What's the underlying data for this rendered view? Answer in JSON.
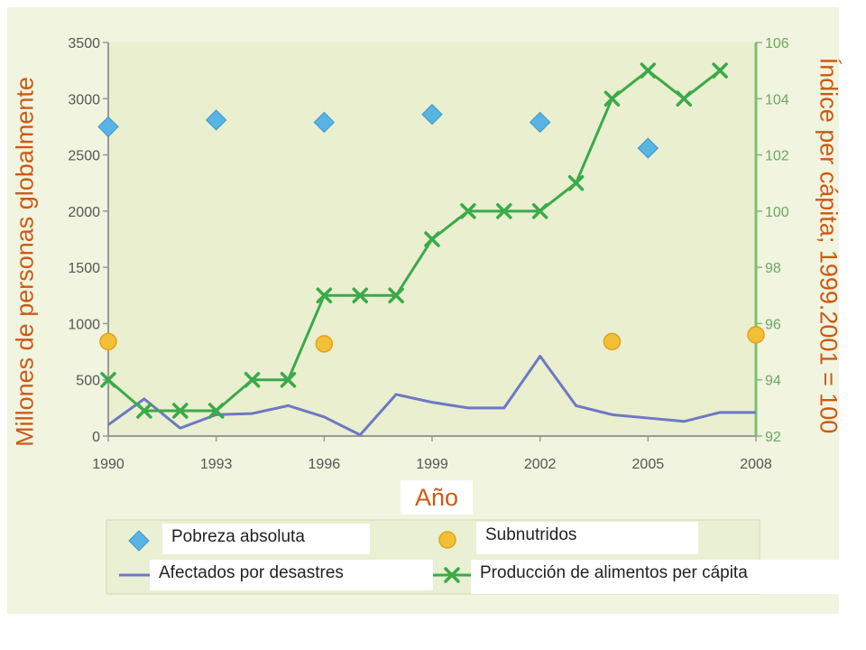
{
  "chart_data": {
    "type": "line",
    "title": "",
    "xlabel": "Año",
    "ylabel_left": "Millones de personas globalmente",
    "ylabel_right": "Índice per cápita; 1999.2001 = 100",
    "x_ticks": [
      "1990",
      "1993",
      "1996",
      "1999",
      "2002",
      "2005",
      "2008"
    ],
    "xlim": [
      1990,
      2008
    ],
    "ylim_left": [
      0,
      3500
    ],
    "y_ticks_left": [
      "0",
      "500",
      "1000",
      "1500",
      "2000",
      "2500",
      "3000",
      "3500"
    ],
    "ylim_right": [
      92,
      106
    ],
    "y_ticks_right": [
      "92",
      "94",
      "96",
      "98",
      "100",
      "102",
      "104",
      "106"
    ],
    "grid": false,
    "legend_position": "bottom",
    "colors": {
      "plot_bg": "#e9efcf",
      "page_bg": "#f1f4df",
      "poverty": "#57b4e4",
      "hunger": "#f2bf36",
      "disaster": "#6e78c4",
      "food": "#3aaa4a",
      "axis": "#999999",
      "right_axis": "#7cc26f",
      "title": "#cc5a14"
    },
    "series": [
      {
        "name": "Pobreza absoluta",
        "axis": "left",
        "kind": "scatter",
        "marker": "diamond",
        "points": [
          [
            1990,
            2750
          ],
          [
            1993,
            2810
          ],
          [
            1996,
            2790
          ],
          [
            1999,
            2860
          ],
          [
            2002,
            2790
          ],
          [
            2005,
            2560
          ]
        ]
      },
      {
        "name": "Subnutridos",
        "axis": "left",
        "kind": "scatter",
        "marker": "circle",
        "points": [
          [
            1990,
            840
          ],
          [
            1996,
            820
          ],
          [
            2004,
            840
          ],
          [
            2008,
            900
          ]
        ]
      },
      {
        "name": "Afectados por desastres",
        "axis": "left",
        "kind": "line",
        "points": [
          [
            1990,
            100
          ],
          [
            1991,
            330
          ],
          [
            1992,
            70
          ],
          [
            1993,
            190
          ],
          [
            1994,
            200
          ],
          [
            1995,
            270
          ],
          [
            1996,
            170
          ],
          [
            1997,
            10
          ],
          [
            1998,
            370
          ],
          [
            1999,
            300
          ],
          [
            2000,
            250
          ],
          [
            2001,
            250
          ],
          [
            2002,
            710
          ],
          [
            2003,
            270
          ],
          [
            2004,
            190
          ],
          [
            2005,
            160
          ],
          [
            2006,
            130
          ],
          [
            2007,
            210
          ],
          [
            2008,
            210
          ]
        ]
      },
      {
        "name": "Producción de alimentos per cápita",
        "axis": "right",
        "kind": "line",
        "marker": "x",
        "points": [
          [
            1990,
            94
          ],
          [
            1991,
            92.9
          ],
          [
            1992,
            92.9
          ],
          [
            1993,
            92.9
          ],
          [
            1994,
            94
          ],
          [
            1995,
            94
          ],
          [
            1996,
            97
          ],
          [
            1997,
            97
          ],
          [
            1998,
            97
          ],
          [
            1999,
            99
          ],
          [
            2000,
            100
          ],
          [
            2001,
            100
          ],
          [
            2002,
            100
          ],
          [
            2003,
            101
          ],
          [
            2004,
            104
          ],
          [
            2005,
            105
          ],
          [
            2006,
            104
          ],
          [
            2007,
            105
          ]
        ]
      }
    ]
  }
}
